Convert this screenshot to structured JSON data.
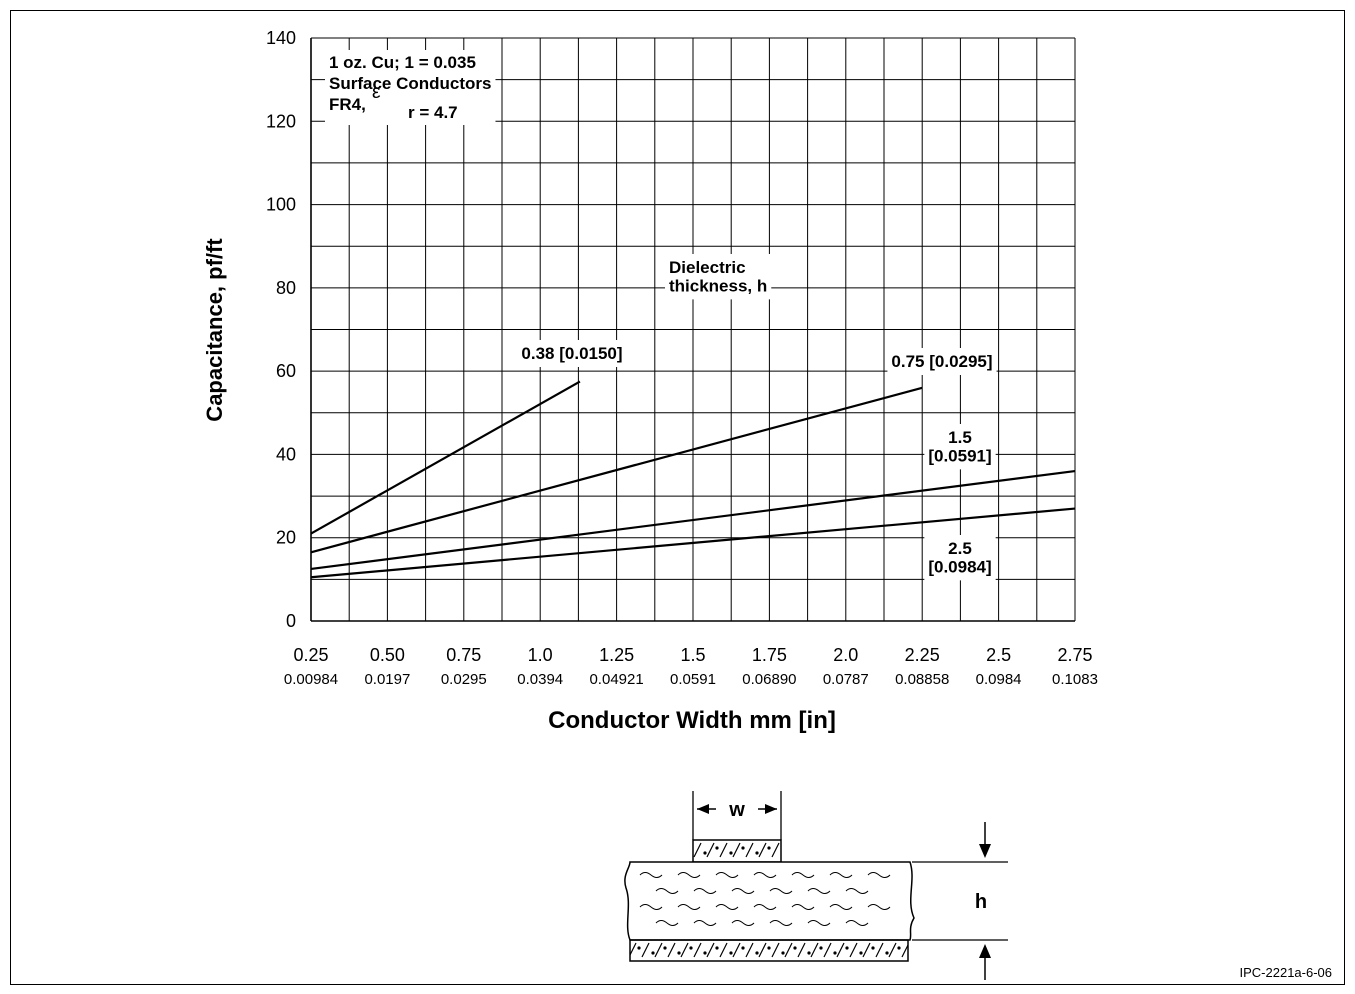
{
  "chart_data": {
    "type": "line",
    "xlabel": "Conductor Width mm [in]",
    "ylabel": "Capacitance, pf/ft",
    "x_ticks_mm": [
      "0.25",
      "0.50",
      "0.75",
      "1.0",
      "1.25",
      "1.5",
      "1.75",
      "2.0",
      "2.25",
      "2.5",
      "2.75"
    ],
    "x_ticks_in": [
      "0.00984",
      "0.0197",
      "0.0295",
      "0.0394",
      "0.04921",
      "0.0591",
      "0.06890",
      "0.0787",
      "0.08858",
      "0.0984",
      "0.1083"
    ],
    "y_ticks": [
      "0",
      "20",
      "40",
      "60",
      "80",
      "100",
      "120",
      "140"
    ],
    "xlim": [
      0.25,
      2.75
    ],
    "ylim": [
      0,
      140
    ],
    "grid": true,
    "legend_title": [
      "Dielectric",
      "thickness, h"
    ],
    "annotation": [
      "1 oz. Cu; 1 = 0.035",
      "Surface Conductors",
      "FR4,",
      "r = 4.7"
    ],
    "epsilon_symbol": "ε",
    "series": [
      {
        "name": "0.38 [0.0150]",
        "x": [
          0.25,
          1.13
        ],
        "y": [
          21,
          57.5
        ]
      },
      {
        "name": "0.75 [0.0295]",
        "x": [
          0.25,
          2.25
        ],
        "y": [
          16.5,
          56
        ]
      },
      {
        "name": "1.5 [0.0591]",
        "x": [
          0.25,
          2.75
        ],
        "y": [
          12.5,
          36
        ]
      },
      {
        "name": "2.5 [0.0984]",
        "x": [
          0.25,
          2.75
        ],
        "y": [
          10.5,
          27
        ]
      }
    ],
    "series_labels": [
      {
        "lines": [
          "0.38 [0.0150]"
        ]
      },
      {
        "lines": [
          "0.75 [0.0295]"
        ]
      },
      {
        "lines": [
          "1.5",
          "[0.0591]"
        ]
      },
      {
        "lines": [
          "2.5",
          "[0.0984]"
        ]
      }
    ]
  },
  "diagram": {
    "width_label": "w",
    "height_label": "h"
  },
  "figure_code": "IPC-2221a-6-06"
}
